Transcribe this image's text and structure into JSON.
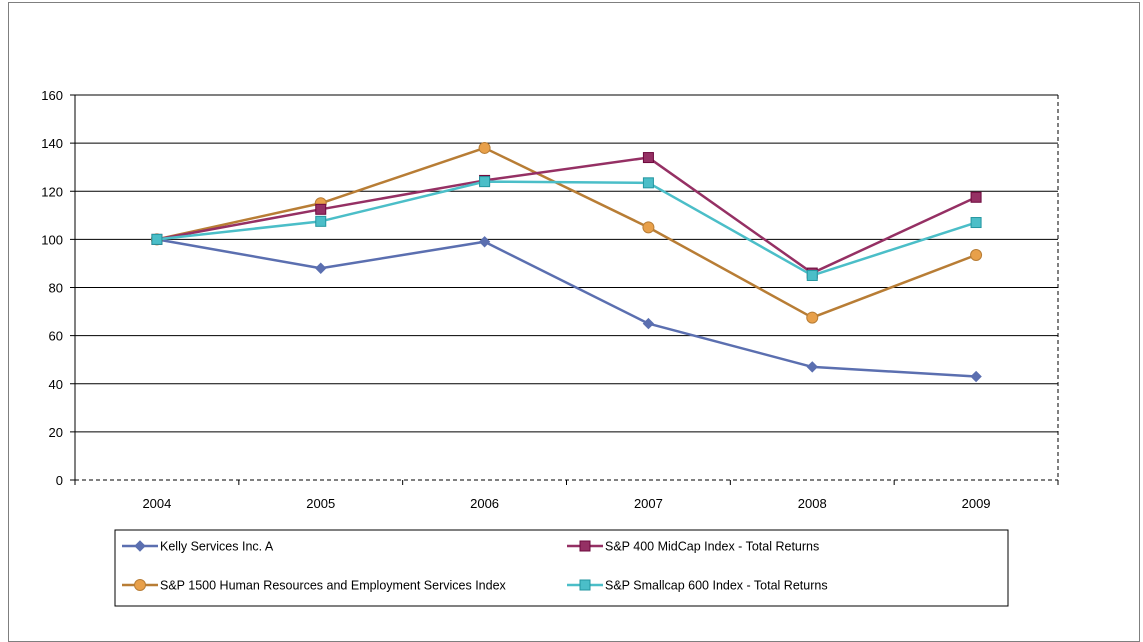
{
  "chart_data": {
    "type": "line",
    "title": "",
    "xlabel": "",
    "ylabel": "",
    "categories": [
      "2004",
      "2005",
      "2006",
      "2007",
      "2008",
      "2009"
    ],
    "ylim": [
      0,
      160
    ],
    "yticks": [
      0,
      20,
      40,
      60,
      80,
      100,
      120,
      140,
      160
    ],
    "grid": true,
    "legend_position": "bottom",
    "series": [
      {
        "name": "Kelly Services Inc. A",
        "color": "#5b6fb0",
        "marker": "diamond",
        "values": [
          100,
          88,
          99,
          65,
          47,
          43
        ]
      },
      {
        "name": "S&P 400 MidCap Index - Total Returns",
        "color": "#953064",
        "marker": "square",
        "values": [
          100,
          112.5,
          124.5,
          134,
          86,
          117.5
        ]
      },
      {
        "name": "S&P 1500  Human Resources and Employment Services Index",
        "color": "#b87d35",
        "marker": "circle",
        "values": [
          100,
          115,
          138,
          105,
          67.5,
          93.5
        ]
      },
      {
        "name": "S&P Smallcap 600 Index - Total Returns",
        "color": "#4bbec8",
        "marker": "square",
        "values": [
          100,
          107.5,
          124,
          123.5,
          85,
          107
        ]
      }
    ]
  }
}
